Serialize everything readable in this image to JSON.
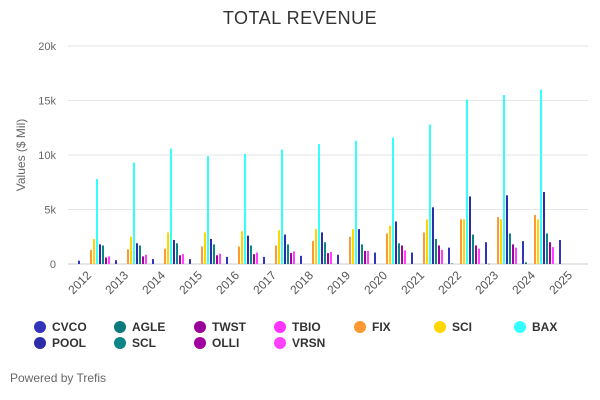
{
  "chart_data": {
    "type": "bar",
    "title": "TOTAL REVENUE",
    "ylabel": "Values ($ Mil)",
    "xlabel": "",
    "ylim": [
      0,
      20000
    ],
    "y_ticks": [
      {
        "value": 0,
        "label": "0"
      },
      {
        "value": 5000,
        "label": "5k"
      },
      {
        "value": 10000,
        "label": "10k"
      },
      {
        "value": 15000,
        "label": "15k"
      },
      {
        "value": 20000,
        "label": "20k"
      }
    ],
    "grid": true,
    "legend_position": "bottom",
    "categories": [
      "2012",
      "2013",
      "2014",
      "2015",
      "2016",
      "2017",
      "2018",
      "2019",
      "2020",
      "2021",
      "2022",
      "2023",
      "2024",
      "2025"
    ],
    "series": [
      {
        "name": "CVCO",
        "color": "#3333bb",
        "values": [
          300,
          350,
          450,
          450,
          650,
          650,
          750,
          850,
          1050,
          1050,
          1500,
          2000,
          2100,
          2200
        ]
      },
      {
        "name": "AGLE",
        "color": "#0a7a7a",
        "values": [
          0,
          0,
          0,
          0,
          0,
          0,
          0,
          0,
          0,
          0,
          50,
          20,
          150,
          null
        ]
      },
      {
        "name": "TWST",
        "color": "#990099",
        "values": [
          0,
          0,
          0,
          0,
          0,
          0,
          0,
          0,
          0,
          0,
          0,
          0,
          0,
          null
        ]
      },
      {
        "name": "TBIO",
        "color": "#ff33ff",
        "values": [
          0,
          0,
          0,
          0,
          0,
          0,
          0,
          0,
          0,
          0,
          0,
          0,
          0,
          null
        ]
      },
      {
        "name": "FIX",
        "color": "#ff9933",
        "values": [
          1300,
          1350,
          1400,
          1600,
          1600,
          1700,
          2100,
          2500,
          2800,
          2900,
          4100,
          4300,
          4500,
          null
        ]
      },
      {
        "name": "SCI",
        "color": "#ffd700",
        "values": [
          2300,
          2500,
          2900,
          2900,
          3000,
          3100,
          3200,
          3200,
          3500,
          4100,
          4100,
          4100,
          4100,
          null
        ]
      },
      {
        "name": "BAX",
        "color": "#33ffff",
        "values": [
          7800,
          9300,
          10600,
          9900,
          10100,
          10500,
          11000,
          11300,
          11600,
          12800,
          15100,
          15500,
          16000,
          null
        ]
      },
      {
        "name": "POOL",
        "color": "#2c2ca8",
        "values": [
          1800,
          1900,
          2200,
          2300,
          2600,
          2700,
          2900,
          3200,
          3900,
          5200,
          6200,
          6300,
          6600,
          null
        ]
      },
      {
        "name": "SCL",
        "color": "#0b8585",
        "values": [
          1700,
          1700,
          1900,
          1800,
          1700,
          1800,
          2000,
          1800,
          1900,
          2300,
          2700,
          2800,
          2800,
          null
        ]
      },
      {
        "name": "OLLI",
        "color": "#a000a0",
        "values": [
          600,
          700,
          800,
          800,
          900,
          1000,
          1000,
          1200,
          1700,
          1700,
          1700,
          1800,
          2000,
          null
        ]
      },
      {
        "name": "VRSN",
        "color": "#ff40ff",
        "values": [
          700,
          850,
          900,
          950,
          1050,
          1150,
          1100,
          1200,
          1250,
          1300,
          1400,
          1500,
          1550,
          null
        ]
      }
    ],
    "legend_order": [
      "CVCO",
      "AGLE",
      "TWST",
      "TBIO",
      "FIX",
      "SCI",
      "BAX",
      "POOL",
      "SCL",
      "OLLI",
      "VRSN"
    ]
  },
  "footer": {
    "text": "Powered by Trefis"
  }
}
